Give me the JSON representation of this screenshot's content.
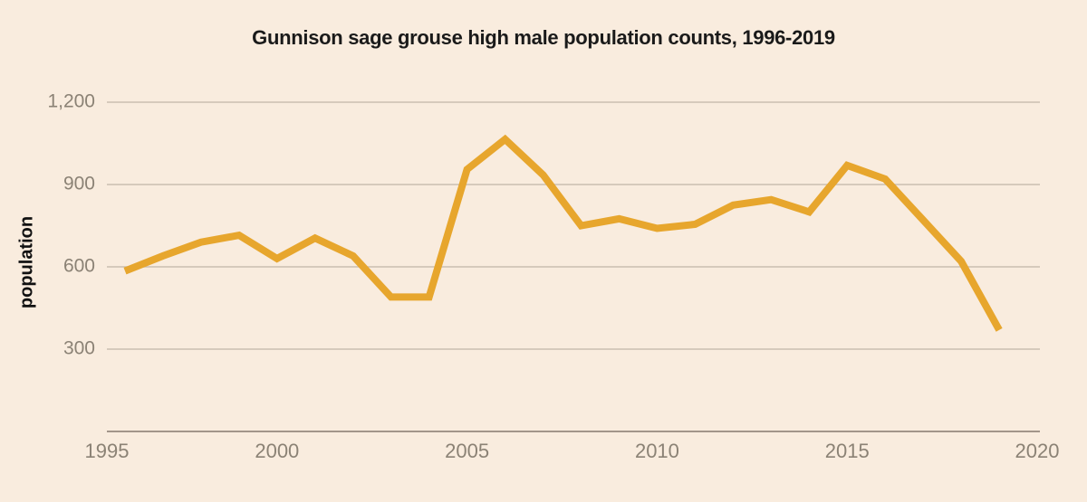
{
  "title": "Gunnison sage grouse high male population counts, 1996-2019",
  "colors": {
    "background": "#f9ecde",
    "line": "#e7a62d",
    "gridline": "#cabfb1",
    "axis_line": "#a2958a",
    "tick_text": "#8b8275",
    "title_text": "#1a1a1a"
  },
  "chart_data": {
    "type": "line",
    "title": "Gunnison sage grouse high male population counts, 1996-2019",
    "xlabel": "",
    "ylabel": "population",
    "x": [
      1996,
      1997,
      1998,
      1999,
      2000,
      2001,
      2002,
      2003,
      2004,
      2005,
      2006,
      2007,
      2008,
      2009,
      2010,
      2011,
      2012,
      2013,
      2014,
      2015,
      2016,
      2017,
      2018,
      2019
    ],
    "values": [
      585,
      640,
      690,
      715,
      630,
      705,
      640,
      490,
      490,
      955,
      1065,
      935,
      750,
      775,
      740,
      755,
      825,
      845,
      800,
      970,
      920,
      770,
      620,
      370
    ],
    "xlim": [
      1995,
      2020
    ],
    "ylim": [
      0,
      1200
    ],
    "x_ticks": [
      1995,
      2000,
      2005,
      2010,
      2015,
      2020
    ],
    "x_tick_labels": [
      "1995",
      "2000",
      "2005",
      "2010",
      "2015",
      "2020"
    ],
    "y_ticks": [
      1200,
      900,
      600,
      300
    ],
    "y_tick_labels": [
      "1,200",
      "900",
      "600",
      "300"
    ],
    "grid": "horizontal",
    "legend": "none",
    "line_width": 8
  }
}
